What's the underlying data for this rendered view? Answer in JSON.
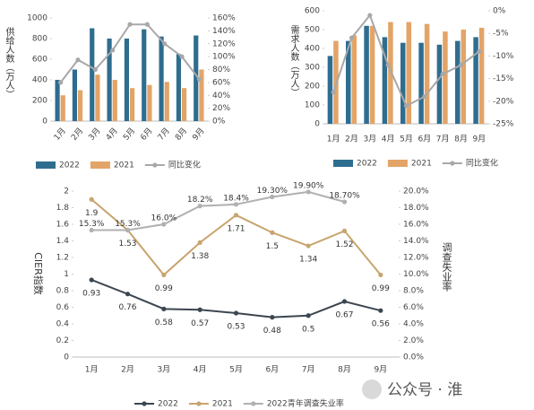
{
  "chart_data": [
    {
      "type": "bar",
      "y_label": "供给人数（万人）",
      "categories": [
        "1月",
        "2月",
        "3月",
        "4月",
        "5月",
        "6月",
        "7月",
        "8月",
        "9月"
      ],
      "series": [
        {
          "name": "2022",
          "color": "#2f6d8f",
          "values": [
            400,
            500,
            900,
            800,
            800,
            890,
            820,
            650,
            830
          ]
        },
        {
          "name": "2021",
          "color": "#e3a467",
          "values": [
            250,
            300,
            450,
            400,
            320,
            350,
            380,
            320,
            500
          ]
        },
        {
          "name": "同比变化",
          "color": "#a8a8a8",
          "axis": "y2",
          "values": [
            60,
            95,
            80,
            110,
            150,
            150,
            120,
            100,
            65
          ]
        }
      ],
      "ylim": [
        0,
        1000
      ],
      "yticks": [
        0,
        200,
        400,
        600,
        800,
        1000
      ],
      "y2lim": [
        0,
        160
      ],
      "y2ticks": [
        {
          "value": 0,
          "label": "0%"
        },
        {
          "value": 20,
          "label": "20%"
        },
        {
          "value": 40,
          "label": "40%"
        },
        {
          "value": 60,
          "label": "60%"
        },
        {
          "value": 80,
          "label": "80%"
        },
        {
          "value": 100,
          "label": "100%"
        },
        {
          "value": 120,
          "label": "120%"
        },
        {
          "value": 140,
          "label": "140%"
        },
        {
          "value": 160,
          "label": "160%"
        }
      ]
    },
    {
      "type": "bar",
      "y_label": "需求人数（万人）",
      "categories": [
        "1月",
        "2月",
        "3月",
        "4月",
        "5月",
        "6月",
        "7月",
        "8月",
        "9月"
      ],
      "series": [
        {
          "name": "2022",
          "color": "#2f6d8f",
          "values": [
            360,
            440,
            520,
            460,
            430,
            430,
            420,
            440,
            460
          ]
        },
        {
          "name": "2021",
          "color": "#e3a467",
          "values": [
            440,
            470,
            520,
            540,
            540,
            530,
            490,
            500,
            510
          ]
        },
        {
          "name": "同比变化",
          "color": "#a8a8a8",
          "axis": "y2",
          "values": [
            -18,
            -6,
            -1,
            -12,
            -21,
            -19,
            -14,
            -12,
            -9
          ]
        }
      ],
      "ylim": [
        0,
        600
      ],
      "yticks": [
        0,
        100,
        200,
        300,
        400,
        500,
        600
      ],
      "y2lim": [
        -25,
        0
      ],
      "y2ticks": [
        {
          "value": -25,
          "label": "-25%"
        },
        {
          "value": -20,
          "label": "-20%"
        },
        {
          "value": -15,
          "label": "-15%"
        },
        {
          "value": -10,
          "label": "-10%"
        },
        {
          "value": -5,
          "label": "-5%"
        },
        {
          "value": 0,
          "label": "0%"
        }
      ]
    },
    {
      "type": "line",
      "y_label": "CIER指数",
      "y2_label": "调查失业率",
      "categories": [
        "1月",
        "2月",
        "3月",
        "4月",
        "5月",
        "6月",
        "7月",
        "8月",
        "9月"
      ],
      "series": [
        {
          "name": "2022",
          "color": "#3c4650",
          "values": [
            0.93,
            0.76,
            0.58,
            0.57,
            0.53,
            0.48,
            0.5,
            0.67,
            0.56
          ]
        },
        {
          "name": "2021",
          "color": "#c8a46e",
          "values": [
            1.9,
            1.53,
            0.99,
            1.38,
            1.71,
            1.5,
            1.34,
            1.52,
            0.99
          ]
        },
        {
          "name": "2022青年调查失业率",
          "color": "#b0b0b0",
          "axis": "y2",
          "values": [
            15.3,
            15.3,
            16.0,
            18.2,
            18.4,
            19.3,
            19.9,
            18.7,
            null
          ],
          "value_labels": [
            "15.3%",
            "15.3%",
            "16.0%",
            "18.2%",
            "18.4%",
            "19.30%",
            "19.90%",
            "18.70%",
            null
          ]
        }
      ],
      "ylim": [
        0,
        2
      ],
      "yticks": [
        0,
        0.2,
        0.4,
        0.6,
        0.8,
        1,
        1.2,
        1.4,
        1.6,
        1.8,
        2
      ],
      "y2lim": [
        0,
        20
      ],
      "y2ticks": [
        {
          "value": 0,
          "label": "0.0%"
        },
        {
          "value": 2,
          "label": "2.0%"
        },
        {
          "value": 4,
          "label": "4.0%"
        },
        {
          "value": 6,
          "label": "6.0%"
        },
        {
          "value": 8,
          "label": "8.0%"
        },
        {
          "value": 10,
          "label": "10.0%"
        },
        {
          "value": 12,
          "label": "12.0%"
        },
        {
          "value": 14,
          "label": "14.0%"
        },
        {
          "value": 16,
          "label": "16.0%"
        },
        {
          "value": 18,
          "label": "18.0%"
        },
        {
          "value": 20,
          "label": "20.0%"
        }
      ]
    }
  ],
  "watermark": "公众号 · 淮"
}
